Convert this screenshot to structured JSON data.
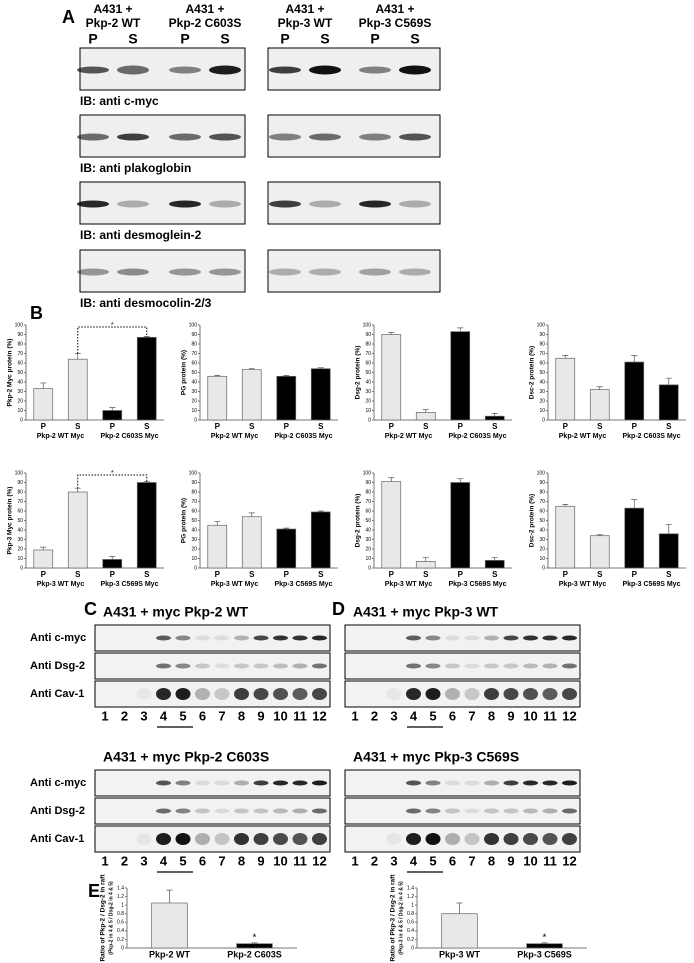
{
  "panel_labels": [
    "A",
    "B",
    "C",
    "D",
    "E"
  ],
  "panel_a": {
    "columns": [
      {
        "line1": "A431 +",
        "line2": "Pkp-2 WT",
        "lanes": [
          "P",
          "S"
        ]
      },
      {
        "line1": "A431 +",
        "line2": "Pkp-2 C603S",
        "lanes": [
          "P",
          "S"
        ]
      },
      {
        "line1": "A431 +",
        "line2": "Pkp-3 WT",
        "lanes": [
          "P",
          "S"
        ]
      },
      {
        "line1": "A431 +",
        "line2": "Pkp-3 C569S",
        "lanes": [
          "P",
          "S"
        ]
      }
    ],
    "blots": [
      "IB: anti c-myc",
      "IB: anti plakoglobin",
      "IB: anti desmoglein-2",
      "IB: anti desmocolin-2/3"
    ]
  },
  "panel_cd": [
    {
      "title": "A431 + myc Pkp-2 WT",
      "rows": [
        "Anti c-myc",
        "Anti Dsg-2",
        "Anti Cav-1"
      ],
      "lanes": [
        "1",
        "2",
        "3",
        "4",
        "5",
        "6",
        "7",
        "8",
        "9",
        "10",
        "11",
        "12"
      ]
    },
    {
      "title": "A431 + myc Pkp-3 WT",
      "lanes": [
        "1",
        "2",
        "3",
        "4",
        "5",
        "6",
        "7",
        "8",
        "9",
        "10",
        "11",
        "12"
      ]
    },
    {
      "title": "A431 + myc Pkp-2 C603S",
      "rows": [
        "Anti c-myc",
        "Anti Dsg-2",
        "Anti Cav-1"
      ],
      "lanes": [
        "1",
        "2",
        "3",
        "4",
        "5",
        "6",
        "7",
        "8",
        "9",
        "10",
        "11",
        "12"
      ]
    },
    {
      "title": "A431 + myc Pkp-3 C569S",
      "lanes": [
        "1",
        "2",
        "3",
        "4",
        "5",
        "6",
        "7",
        "8",
        "9",
        "10",
        "11",
        "12"
      ]
    }
  ],
  "chart_data": [
    {
      "type": "bar",
      "y_label": "Pkp-2 Myc protein (%)",
      "categories": [
        "P",
        "S",
        "P",
        "S"
      ],
      "groups": [
        "Pkp-2 WT Myc",
        "Pkp-2 C603S Myc"
      ],
      "values": [
        33,
        64,
        10,
        87
      ],
      "errors": [
        6,
        6,
        3,
        1
      ],
      "colors": [
        "#e8e8e8",
        "#e8e8e8",
        "#000000",
        "#000000"
      ],
      "ylim": [
        0,
        100
      ],
      "yticks": [
        0,
        10,
        20,
        30,
        40,
        50,
        60,
        70,
        80,
        90,
        100
      ],
      "annotation": "*"
    },
    {
      "type": "bar",
      "y_label": "PG protein (%)",
      "categories": [
        "P",
        "S",
        "P",
        "S"
      ],
      "groups": [
        "Pkp-2 WT Myc",
        "Pkp-2 C603S Myc"
      ],
      "values": [
        46,
        53,
        46,
        54
      ],
      "errors": [
        1,
        1,
        1,
        1
      ],
      "colors": [
        "#e8e8e8",
        "#e8e8e8",
        "#000000",
        "#000000"
      ],
      "ylim": [
        0,
        100
      ],
      "yticks": [
        0,
        10,
        20,
        30,
        40,
        50,
        60,
        70,
        80,
        90,
        100
      ]
    },
    {
      "type": "bar",
      "y_label": "Dsg-2 protein (%)",
      "categories": [
        "P",
        "S",
        "P",
        "S"
      ],
      "groups": [
        "Pkp-2 WT Myc",
        "Pkp-2 C603S Myc"
      ],
      "values": [
        90,
        8,
        93,
        4
      ],
      "errors": [
        2,
        3,
        4,
        3
      ],
      "colors": [
        "#e8e8e8",
        "#e8e8e8",
        "#000000",
        "#000000"
      ],
      "ylim": [
        0,
        100
      ],
      "yticks": [
        0,
        10,
        20,
        30,
        40,
        50,
        60,
        70,
        80,
        90,
        100
      ]
    },
    {
      "type": "bar",
      "y_label": "Dsc-2 protein (%)",
      "categories": [
        "P",
        "S",
        "P",
        "S"
      ],
      "groups": [
        "Pkp-2 WT Myc",
        "Pkp-2 C603S Myc"
      ],
      "values": [
        65,
        32,
        61,
        37
      ],
      "errors": [
        3,
        3,
        7,
        7
      ],
      "colors": [
        "#e8e8e8",
        "#e8e8e8",
        "#000000",
        "#000000"
      ],
      "ylim": [
        0,
        100
      ],
      "yticks": [
        0,
        10,
        20,
        30,
        40,
        50,
        60,
        70,
        80,
        90,
        100
      ]
    },
    {
      "type": "bar",
      "y_label": "Pkp-3 Myc protein (%)",
      "categories": [
        "P",
        "S",
        "P",
        "S"
      ],
      "groups": [
        "Pkp-3 WT Myc",
        "Pkp-3 C569S Myc"
      ],
      "values": [
        19,
        80,
        9,
        90
      ],
      "errors": [
        3,
        4,
        3,
        1
      ],
      "colors": [
        "#e8e8e8",
        "#e8e8e8",
        "#000000",
        "#000000"
      ],
      "ylim": [
        0,
        100
      ],
      "yticks": [
        0,
        10,
        20,
        30,
        40,
        50,
        60,
        70,
        80,
        90,
        100
      ],
      "annotation": "*"
    },
    {
      "type": "bar",
      "y_label": "PG protein (%)",
      "categories": [
        "P",
        "S",
        "P",
        "S"
      ],
      "groups": [
        "Pkp-3 WT Myc",
        "Pkp-3 C569S Myc"
      ],
      "values": [
        45,
        54,
        41,
        59
      ],
      "errors": [
        4,
        4,
        1,
        1
      ],
      "colors": [
        "#e8e8e8",
        "#e8e8e8",
        "#000000",
        "#000000"
      ],
      "ylim": [
        0,
        100
      ],
      "yticks": [
        0,
        10,
        20,
        30,
        40,
        50,
        60,
        70,
        80,
        90,
        100
      ]
    },
    {
      "type": "bar",
      "y_label": "Dsg-2 protein (%)",
      "categories": [
        "P",
        "S",
        "P",
        "S"
      ],
      "groups": [
        "Pkp-3 WT Myc",
        "Pkp-3 C569S Myc"
      ],
      "values": [
        91,
        7,
        90,
        8
      ],
      "errors": [
        4,
        4,
        4,
        3
      ],
      "colors": [
        "#e8e8e8",
        "#e8e8e8",
        "#000000",
        "#000000"
      ],
      "ylim": [
        0,
        100
      ],
      "yticks": [
        0,
        10,
        20,
        30,
        40,
        50,
        60,
        70,
        80,
        90,
        100
      ]
    },
    {
      "type": "bar",
      "y_label": "Dsc-2 protein (%)",
      "categories": [
        "P",
        "S",
        "P",
        "S"
      ],
      "groups": [
        "Pkp-3 WT Myc",
        "Pkp-3 C569S Myc"
      ],
      "values": [
        65,
        34,
        63,
        36
      ],
      "errors": [
        2,
        1,
        9,
        10
      ],
      "colors": [
        "#e8e8e8",
        "#e8e8e8",
        "#000000",
        "#000000"
      ],
      "ylim": [
        0,
        100
      ],
      "yticks": [
        0,
        10,
        20,
        30,
        40,
        50,
        60,
        70,
        80,
        90,
        100
      ]
    },
    {
      "type": "bar",
      "y_label": "Ratio of Pkp-2 / Dsg-2 in raft",
      "y_sublabel": "(Pkp-2 in 4 & 5 / Dsg-2 in 4 & 5)",
      "categories": [
        "Pkp-2 WT",
        "Pkp-2 C603S"
      ],
      "values": [
        1.05,
        0.1
      ],
      "errors": [
        0.3,
        0.02
      ],
      "colors": [
        "#e8e8e8",
        "#000000"
      ],
      "ylim": [
        0,
        1.4
      ],
      "yticks": [
        0,
        0.2,
        0.4,
        0.6,
        0.8,
        1,
        1.2,
        1.4
      ],
      "annotation": "*"
    },
    {
      "type": "bar",
      "y_label": "Ratio of Pkp-3 / Dsg-2 in raft",
      "y_sublabel": "(Pkp-3 in 4 & 5 / Dsg-2 in 4 & 5)",
      "categories": [
        "Pkp-3 WT",
        "Pkp-3 C569S"
      ],
      "values": [
        0.8,
        0.1
      ],
      "errors": [
        0.25,
        0.02
      ],
      "colors": [
        "#e8e8e8",
        "#000000"
      ],
      "ylim": [
        0,
        1.4
      ],
      "yticks": [
        0,
        0.2,
        0.4,
        0.6,
        0.8,
        1,
        1.2,
        1.4
      ],
      "annotation": "*"
    }
  ]
}
